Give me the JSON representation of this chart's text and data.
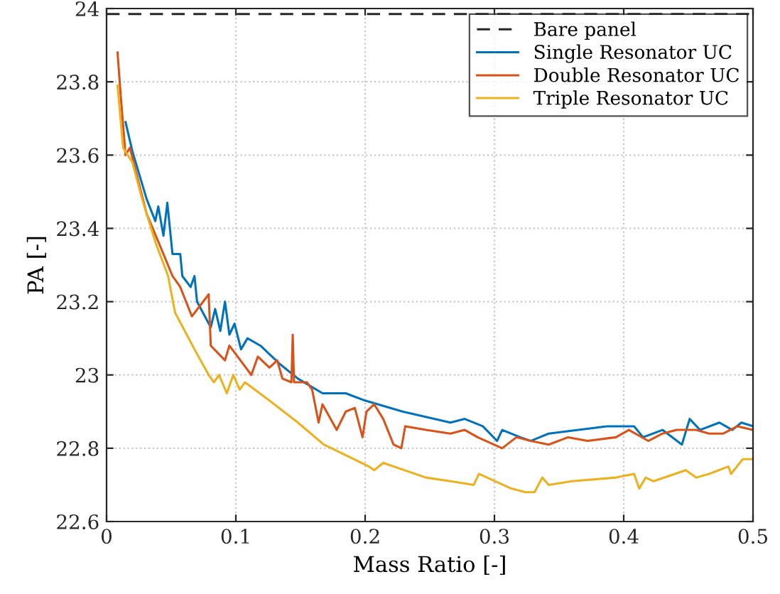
{
  "chart_data": {
    "type": "line",
    "xlabel": "Mass Ratio [-]",
    "ylabel": "PA [-]",
    "xlim": [
      0,
      0.5
    ],
    "xticks": [
      0,
      0.1,
      0.2,
      0.3,
      0.4,
      0.5
    ],
    "ylim": [
      22.6,
      24
    ],
    "yticks": [
      22.6,
      22.8,
      23,
      23.2,
      23.4,
      23.6,
      23.8,
      24
    ],
    "grid": true,
    "legend": "top right",
    "marker": "none",
    "series": [
      {
        "name": "Bare panel",
        "color": "#262626",
        "line_style": "dashed",
        "x": [
          0,
          0.5
        ],
        "values": [
          23.985,
          23.985
        ]
      },
      {
        "name": "Single Resonator UC",
        "color": "#0072bd",
        "x": [
          0.0147,
          0.02,
          0.031,
          0.0377,
          0.04,
          0.044,
          0.047,
          0.051,
          0.057,
          0.0586,
          0.065,
          0.068,
          0.07,
          0.0806,
          0.084,
          0.088,
          0.0916,
          0.095,
          0.099,
          0.104,
          0.109,
          0.119,
          0.134,
          0.148,
          0.167,
          0.185,
          0.2,
          0.229,
          0.266,
          0.277,
          0.291,
          0.302,
          0.306,
          0.32,
          0.328,
          0.342,
          0.365,
          0.387,
          0.408,
          0.415,
          0.43,
          0.445,
          0.451,
          0.459,
          0.474,
          0.484,
          0.491,
          0.5
        ],
        "values": [
          23.69,
          23.61,
          23.48,
          23.42,
          23.46,
          23.38,
          23.47,
          23.33,
          23.33,
          23.27,
          23.24,
          23.27,
          23.2,
          23.13,
          23.18,
          23.12,
          23.2,
          23.11,
          23.14,
          23.07,
          23.1,
          23.08,
          23.03,
          22.99,
          22.95,
          22.95,
          22.93,
          22.9,
          22.87,
          22.88,
          22.86,
          22.82,
          22.85,
          22.83,
          22.82,
          22.84,
          22.85,
          22.86,
          22.86,
          22.83,
          22.85,
          22.81,
          22.88,
          22.85,
          22.87,
          22.85,
          22.87,
          22.86
        ]
      },
      {
        "name": "Double Resonator UC",
        "color": "#d95319",
        "x": [
          0.0085,
          0.011,
          0.0147,
          0.018,
          0.031,
          0.044,
          0.051,
          0.057,
          0.066,
          0.079,
          0.0806,
          0.0916,
          0.095,
          0.112,
          0.117,
          0.126,
          0.132,
          0.136,
          0.143,
          0.144,
          0.145,
          0.155,
          0.159,
          0.164,
          0.167,
          0.178,
          0.185,
          0.192,
          0.198,
          0.201,
          0.207,
          0.214,
          0.222,
          0.228,
          0.231,
          0.247,
          0.266,
          0.277,
          0.287,
          0.306,
          0.317,
          0.328,
          0.342,
          0.357,
          0.372,
          0.394,
          0.404,
          0.419,
          0.43,
          0.441,
          0.456,
          0.466,
          0.477,
          0.488,
          0.5
        ],
        "values": [
          23.88,
          23.76,
          23.6,
          23.62,
          23.44,
          23.33,
          23.27,
          23.24,
          23.16,
          23.22,
          23.08,
          23.04,
          23.08,
          23.0,
          23.05,
          23.02,
          23.04,
          22.99,
          22.98,
          23.11,
          22.98,
          22.98,
          22.96,
          22.87,
          22.92,
          22.85,
          22.9,
          22.91,
          22.83,
          22.9,
          22.92,
          22.88,
          22.81,
          22.8,
          22.86,
          22.85,
          22.84,
          22.85,
          22.83,
          22.8,
          22.83,
          22.82,
          22.81,
          22.83,
          22.82,
          22.83,
          22.85,
          22.82,
          22.84,
          22.85,
          22.85,
          22.84,
          22.84,
          22.86,
          22.85
        ]
      },
      {
        "name": "Triple Resonator UC",
        "color": "#edb120",
        "x": [
          0.0085,
          0.0128,
          0.02,
          0.0275,
          0.038,
          0.0476,
          0.053,
          0.068,
          0.079,
          0.083,
          0.087,
          0.093,
          0.098,
          0.103,
          0.107,
          0.126,
          0.148,
          0.168,
          0.174,
          0.203,
          0.207,
          0.214,
          0.247,
          0.266,
          0.284,
          0.288,
          0.313,
          0.324,
          0.331,
          0.337,
          0.342,
          0.36,
          0.394,
          0.408,
          0.412,
          0.417,
          0.423,
          0.448,
          0.456,
          0.466,
          0.481,
          0.483,
          0.492,
          0.5
        ],
        "values": [
          23.79,
          23.62,
          23.58,
          23.48,
          23.36,
          23.27,
          23.17,
          23.07,
          23.0,
          22.98,
          23.0,
          22.95,
          23.0,
          22.96,
          22.98,
          22.93,
          22.87,
          22.81,
          22.8,
          22.75,
          22.74,
          22.76,
          22.72,
          22.71,
          22.7,
          22.73,
          22.69,
          22.68,
          22.68,
          22.72,
          22.7,
          22.71,
          22.72,
          22.73,
          22.69,
          22.72,
          22.71,
          22.74,
          22.72,
          22.73,
          22.75,
          22.73,
          22.77,
          22.77
        ]
      }
    ]
  }
}
